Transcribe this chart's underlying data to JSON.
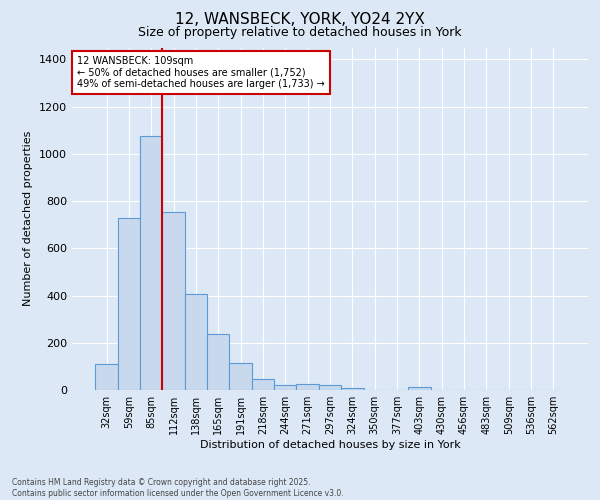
{
  "title": "12, WANSBECK, YORK, YO24 2YX",
  "subtitle": "Size of property relative to detached houses in York",
  "xlabel": "Distribution of detached houses by size in York",
  "ylabel": "Number of detached properties",
  "categories": [
    "32sqm",
    "59sqm",
    "85sqm",
    "112sqm",
    "138sqm",
    "165sqm",
    "191sqm",
    "218sqm",
    "244sqm",
    "271sqm",
    "297sqm",
    "324sqm",
    "350sqm",
    "377sqm",
    "403sqm",
    "430sqm",
    "456sqm",
    "483sqm",
    "509sqm",
    "536sqm",
    "562sqm"
  ],
  "values": [
    110,
    730,
    1075,
    755,
    405,
    235,
    115,
    48,
    20,
    27,
    20,
    10,
    0,
    0,
    12,
    0,
    0,
    0,
    0,
    0,
    0
  ],
  "bar_color": "#c9d9ed",
  "bar_edge_color": "#5b9bd5",
  "background_color": "#dce8f5",
  "grid_color": "#ffffff",
  "vline_color": "#cc0000",
  "annotation_text": "12 WANSBECK: 109sqm\n← 50% of detached houses are smaller (1,752)\n49% of semi-detached houses are larger (1,733) →",
  "annotation_box_edge": "#cc0000",
  "annotation_fontsize": 7.0,
  "title_fontsize": 11,
  "subtitle_fontsize": 9,
  "ylabel_fontsize": 8,
  "xlabel_fontsize": 8,
  "tick_fontsize": 7,
  "ylim": [
    0,
    1450
  ],
  "footnote": "Contains HM Land Registry data © Crown copyright and database right 2025.\nContains public sector information licensed under the Open Government Licence v3.0.",
  "footnote_fontsize": 5.5
}
